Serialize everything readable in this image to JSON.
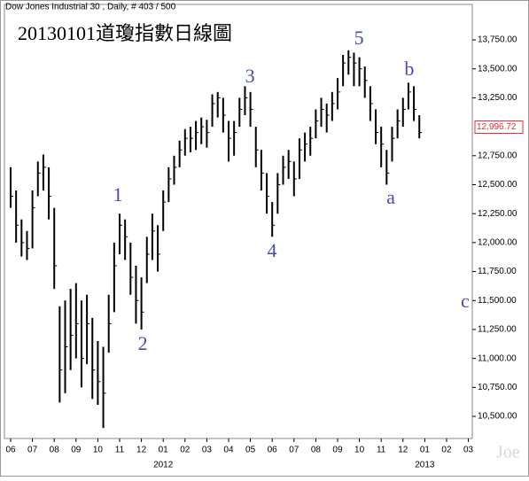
{
  "chart_data": {
    "type": "ohlc",
    "header": "Dow Jones Industrial 30 , Daily, # 403 / 500",
    "title": "20130101道瓊指數日線圖",
    "watermark": "Joe",
    "color": "#000000",
    "annotation_color": "#4a4aa8",
    "x": [
      0,
      0.25,
      0.5,
      0.75,
      1,
      1.25,
      1.5,
      1.75,
      2,
      2.25,
      2.5,
      2.75,
      3,
      3.25,
      3.5,
      3.75,
      4,
      4.25,
      4.5,
      4.75,
      5,
      5.25,
      5.5,
      5.75,
      6,
      6.25,
      6.5,
      6.75,
      7,
      7.25,
      7.5,
      7.75,
      8,
      8.25,
      8.5,
      8.75,
      9,
      9.25,
      9.5,
      9.75,
      10,
      10.25,
      10.5,
      10.75,
      11,
      11.25,
      11.5,
      11.75,
      12,
      12.25,
      12.5,
      12.75,
      13,
      13.25,
      13.5,
      13.75,
      14,
      14.25,
      14.5,
      14.75,
      15,
      15.25,
      15.5,
      15.75,
      16,
      16.25,
      16.5,
      16.75,
      17,
      17.25,
      17.5,
      17.75,
      18,
      18.25,
      18.5,
      18.75
    ],
    "high": [
      12650,
      12450,
      12200,
      12100,
      12450,
      12700,
      12760,
      12650,
      12300,
      11450,
      11500,
      11600,
      11650,
      11500,
      11550,
      11350,
      11150,
      11100,
      11550,
      12000,
      12250,
      12200,
      12000,
      11800,
      11700,
      12050,
      12250,
      12150,
      12450,
      12650,
      12750,
      12880,
      12980,
      13000,
      13050,
      13080,
      13060,
      13280,
      13300,
      13250,
      13050,
      13050,
      13250,
      13350,
      13300,
      13000,
      12800,
      12600,
      12350,
      12600,
      12750,
      12800,
      12700,
      12900,
      12950,
      13000,
      13150,
      13250,
      13200,
      13300,
      13420,
      13620,
      13660,
      13640,
      13600,
      13520,
      13350,
      13150,
      13000,
      12800,
      13000,
      13150,
      13250,
      13380,
      13350,
      13100
    ],
    "low": [
      12300,
      12000,
      11880,
      11850,
      11950,
      12400,
      12450,
      12200,
      11600,
      10620,
      10700,
      10900,
      11000,
      10750,
      10950,
      10650,
      10600,
      10400,
      11050,
      11400,
      11900,
      11850,
      11550,
      11300,
      11250,
      11650,
      11850,
      11750,
      12100,
      12350,
      12500,
      12650,
      12750,
      12780,
      12800,
      12850,
      12820,
      13000,
      13080,
      12950,
      12700,
      12750,
      13000,
      13100,
      13000,
      12650,
      12450,
      12250,
      12050,
      12250,
      12500,
      12550,
      12400,
      12550,
      12700,
      12750,
      12900,
      13000,
      12950,
      13050,
      13150,
      13350,
      13450,
      13350,
      13350,
      13250,
      13050,
      12850,
      12650,
      12500,
      12700,
      12900,
      13000,
      13150,
      13050,
      12900
    ],
    "close": [
      12400,
      12150,
      12000,
      11950,
      12300,
      12600,
      12650,
      12400,
      11800,
      10900,
      11100,
      11200,
      11300,
      11000,
      11300,
      10900,
      10800,
      10700,
      11300,
      11800,
      12150,
      12050,
      11700,
      11500,
      11400,
      11900,
      12100,
      11900,
      12350,
      12550,
      12650,
      12800,
      12900,
      12900,
      12950,
      13000,
      12950,
      13200,
      13250,
      13100,
      12900,
      12950,
      13150,
      13250,
      13150,
      12800,
      12600,
      12400,
      12150,
      12500,
      12650,
      12700,
      12550,
      12800,
      12850,
      12900,
      13050,
      13150,
      13100,
      13200,
      13300,
      13550,
      13600,
      13550,
      13500,
      13400,
      13200,
      12950,
      12850,
      12600,
      12900,
      13050,
      13150,
      13300,
      13150,
      12950
    ],
    "xlim": [
      -0.285,
      21.18
    ],
    "ylim": [
      10309,
      14056
    ],
    "xticks": [
      {
        "value": 0,
        "label": "06"
      },
      {
        "value": 1,
        "label": "07"
      },
      {
        "value": 2,
        "label": "08"
      },
      {
        "value": 3,
        "label": "09"
      },
      {
        "value": 4,
        "label": "10"
      },
      {
        "value": 5,
        "label": "11"
      },
      {
        "value": 6,
        "label": "12"
      },
      {
        "value": 7,
        "label": "01"
      },
      {
        "value": 8,
        "label": "02"
      },
      {
        "value": 9,
        "label": "03"
      },
      {
        "value": 10,
        "label": "04"
      },
      {
        "value": 11,
        "label": "05"
      },
      {
        "value": 12,
        "label": "06"
      },
      {
        "value": 13,
        "label": "07"
      },
      {
        "value": 14,
        "label": "08"
      },
      {
        "value": 15,
        "label": "09"
      },
      {
        "value": 16,
        "label": "10"
      },
      {
        "value": 17,
        "label": "11"
      },
      {
        "value": 18,
        "label": "12"
      },
      {
        "value": 19,
        "label": "01"
      },
      {
        "value": 20,
        "label": "02"
      },
      {
        "value": 21,
        "label": "03"
      }
    ],
    "year_labels": [
      {
        "value": 7,
        "label": "2012"
      },
      {
        "value": 19,
        "label": "2013"
      }
    ],
    "yticks": [
      {
        "value": 10500,
        "label": "10,500.00"
      },
      {
        "value": 10750,
        "label": "10,750.00"
      },
      {
        "value": 11000,
        "label": "11,000.00"
      },
      {
        "value": 11250,
        "label": "11,250.00"
      },
      {
        "value": 11500,
        "label": "11,500.00"
      },
      {
        "value": 11750,
        "label": "11,750.00"
      },
      {
        "value": 12000,
        "label": "12,000.00"
      },
      {
        "value": 12250,
        "label": "12,250.00"
      },
      {
        "value": 12500,
        "label": "12,500.00"
      },
      {
        "value": 12750,
        "label": "12,750.00"
      },
      {
        "value": 13250,
        "label": "13,250.00"
      },
      {
        "value": 13500,
        "label": "13,500.00"
      },
      {
        "value": 13750,
        "label": "13,750.00"
      }
    ],
    "last_price": {
      "value": 12996.72,
      "label": "12,996.72"
    },
    "annotations": [
      {
        "text": "1",
        "x": 4.92,
        "y": 12397
      },
      {
        "text": "2",
        "x": 6.06,
        "y": 11112
      },
      {
        "text": "3",
        "x": 10.98,
        "y": 13421
      },
      {
        "text": "4",
        "x": 11.99,
        "y": 11915
      },
      {
        "text": "5",
        "x": 15.98,
        "y": 13750
      },
      {
        "text": "a",
        "x": 17.44,
        "y": 12374
      },
      {
        "text": "b",
        "x": 18.29,
        "y": 13483
      },
      {
        "text": "c",
        "x": 20.85,
        "y": 11479
      }
    ],
    "grid": false
  }
}
